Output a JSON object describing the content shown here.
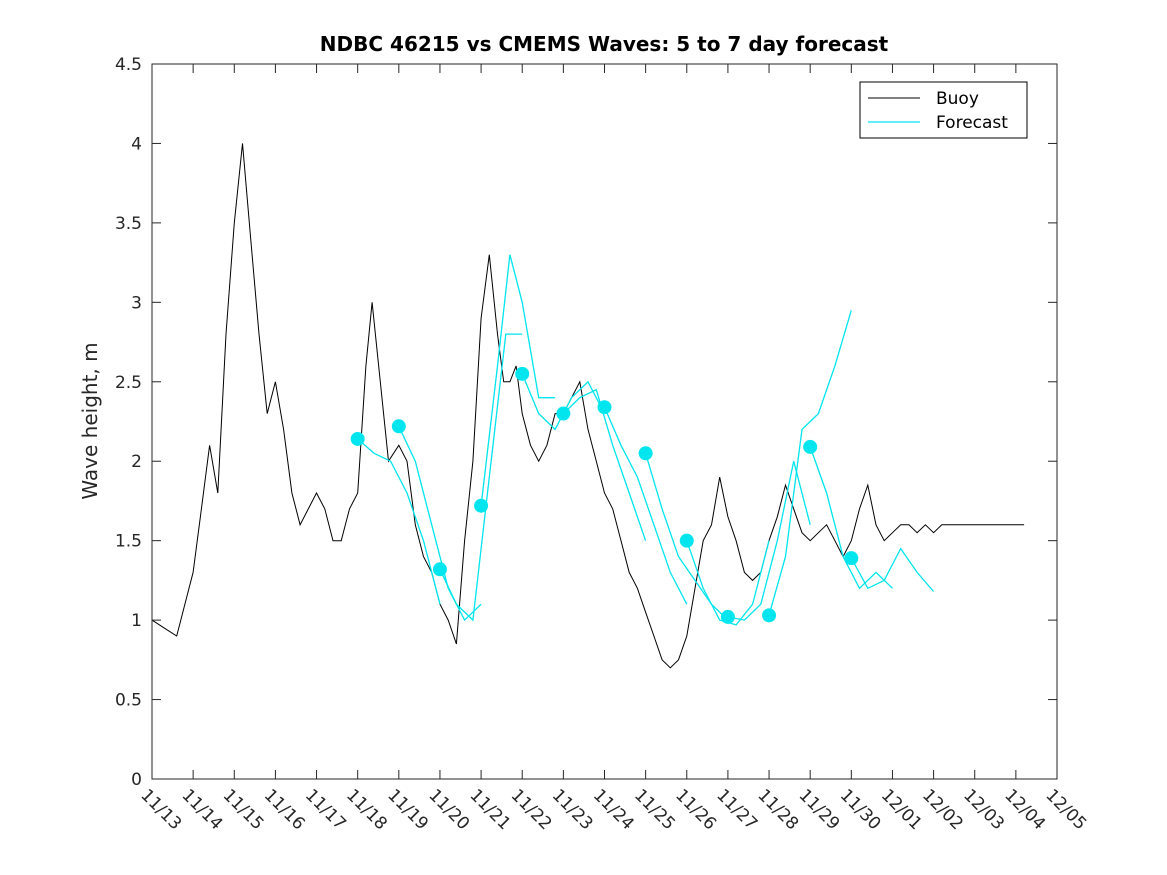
{
  "chart_data": {
    "type": "line",
    "title": "NDBC 46215 vs CMEMS Waves: 5 to 7 day forecast",
    "xlabel": "",
    "ylabel": "Wave height, m",
    "x_unit": "date (Nov 13 - Dec 05)",
    "xlim": [
      "11/13",
      "12/05"
    ],
    "ylim": [
      0,
      4.5
    ],
    "x_ticks": [
      "11/13",
      "11/14",
      "11/15",
      "11/16",
      "11/17",
      "11/18",
      "11/19",
      "11/20",
      "11/21",
      "11/22",
      "11/23",
      "11/24",
      "11/25",
      "11/26",
      "11/27",
      "11/28",
      "11/29",
      "11/30",
      "12/01",
      "12/02",
      "12/03",
      "12/04",
      "12/05"
    ],
    "y_ticks": [
      "0",
      "0.5",
      "1",
      "1.5",
      "2",
      "2.5",
      "3",
      "3.5",
      "4",
      "4.5"
    ],
    "grid": false,
    "legend": {
      "position": "top-right",
      "entries": [
        "Buoy",
        "Forecast"
      ]
    },
    "colors": {
      "buoy": "#000000",
      "forecast": "#00e5ee"
    },
    "series": [
      {
        "name": "Buoy",
        "x_days_from_11_13": [
          0,
          0.3,
          0.6,
          0.9,
          1.0,
          1.2,
          1.4,
          1.6,
          1.8,
          2.0,
          2.2,
          2.4,
          2.6,
          2.8,
          3.0,
          3.2,
          3.4,
          3.6,
          3.8,
          4.0,
          4.2,
          4.4,
          4.6,
          4.8,
          5.0,
          5.2,
          5.35,
          5.55,
          5.75,
          6.0,
          6.2,
          6.4,
          6.6,
          6.8,
          7.0,
          7.2,
          7.4,
          7.6,
          7.8,
          8.0,
          8.2,
          8.4,
          8.55,
          8.7,
          8.85,
          9.0,
          9.2,
          9.4,
          9.6,
          9.8,
          10.0,
          10.2,
          10.4,
          10.6,
          10.8,
          11.0,
          11.2,
          11.4,
          11.6,
          11.8,
          12.0,
          12.2,
          12.4,
          12.6,
          12.8,
          13.0,
          13.2,
          13.4,
          13.6,
          13.8,
          14.0,
          14.2,
          14.4,
          14.6,
          14.8,
          15.0,
          15.2,
          15.4,
          15.6,
          15.8,
          16.0,
          16.2,
          16.4,
          16.6,
          16.8,
          17.0,
          17.2,
          17.4,
          17.6,
          17.8,
          18.0,
          18.2,
          18.4,
          18.6,
          18.8,
          19.0,
          19.2,
          19.4,
          19.6,
          19.8,
          20.0,
          20.2,
          20.4,
          20.6,
          20.8,
          21.0,
          21.2,
          21.4
        ],
        "values": [
          1.0,
          0.95,
          0.9,
          1.2,
          1.3,
          1.7,
          2.1,
          1.8,
          2.8,
          3.5,
          4.0,
          3.4,
          2.8,
          2.3,
          2.5,
          2.2,
          1.8,
          1.6,
          1.7,
          1.8,
          1.7,
          1.5,
          1.5,
          1.7,
          1.8,
          2.6,
          3.0,
          2.5,
          2.0,
          2.1,
          2.0,
          1.6,
          1.4,
          1.3,
          1.1,
          1.0,
          0.85,
          1.5,
          2.0,
          2.9,
          3.3,
          2.8,
          2.5,
          2.5,
          2.6,
          2.3,
          2.1,
          2.0,
          2.1,
          2.3,
          2.3,
          2.4,
          2.5,
          2.2,
          2.0,
          1.8,
          1.7,
          1.5,
          1.3,
          1.2,
          1.05,
          0.9,
          0.75,
          0.7,
          0.75,
          0.9,
          1.2,
          1.5,
          1.6,
          1.9,
          1.65,
          1.5,
          1.3,
          1.25,
          1.3,
          1.5,
          1.65,
          1.85,
          1.7,
          1.55,
          1.5,
          1.55,
          1.6,
          1.5,
          1.4,
          1.5,
          1.7,
          1.85,
          1.6,
          1.5,
          1.55,
          1.6,
          1.6,
          1.55,
          1.6,
          1.55,
          1.6,
          1.6,
          1.6,
          1.6,
          1.6,
          1.6,
          1.6,
          1.6,
          1.6,
          1.6,
          1.6
        ]
      },
      {
        "name": "Forecast",
        "note": "overlapping forecast runs; dots mark forecast start values",
        "runs": [
          {
            "x": [
              5.0,
              5.4,
              5.8,
              6.2,
              6.6,
              7.0
            ],
            "values": [
              2.14,
              2.05,
              2.0,
              1.8,
              1.5,
              1.1
            ]
          },
          {
            "x": [
              6.0,
              6.4,
              6.8,
              7.2,
              7.6,
              8.0
            ],
            "values": [
              2.22,
              2.0,
              1.6,
              1.2,
              1.0,
              1.1
            ]
          },
          {
            "x": [
              7.0,
              7.4,
              7.8,
              8.2,
              8.6,
              9.0
            ],
            "values": [
              1.32,
              1.1,
              1.0,
              1.9,
              2.8,
              2.8
            ]
          },
          {
            "x": [
              8.0,
              8.4,
              8.7,
              9.0,
              9.4,
              9.8
            ],
            "values": [
              1.72,
              2.6,
              3.3,
              3.0,
              2.4,
              2.4
            ]
          },
          {
            "x": [
              9.0,
              9.4,
              9.8,
              10.2,
              10.6,
              11.0
            ],
            "values": [
              2.55,
              2.3,
              2.2,
              2.4,
              2.5,
              2.3
            ]
          },
          {
            "x": [
              10.0,
              10.4,
              10.8,
              11.2,
              11.6,
              12.0
            ],
            "values": [
              2.3,
              2.4,
              2.45,
              2.1,
              1.8,
              1.5
            ]
          },
          {
            "x": [
              11.0,
              11.4,
              11.8,
              12.2,
              12.6,
              13.0
            ],
            "values": [
              2.34,
              2.1,
              1.9,
              1.6,
              1.3,
              1.1
            ]
          },
          {
            "x": [
              12.0,
              12.4,
              12.8,
              13.2,
              13.6,
              14.0
            ],
            "values": [
              2.05,
              1.7,
              1.4,
              1.25,
              1.1,
              1.0
            ]
          },
          {
            "x": [
              13.0,
              13.4,
              13.8,
              14.2,
              14.6,
              15.0
            ],
            "values": [
              1.5,
              1.2,
              1.0,
              0.97,
              1.1,
              1.5
            ]
          },
          {
            "x": [
              14.0,
              14.4,
              14.8,
              15.2,
              15.6,
              16.0
            ],
            "values": [
              1.02,
              1.0,
              1.1,
              1.5,
              2.0,
              1.6
            ]
          },
          {
            "x": [
              15.0,
              15.4,
              15.8,
              16.2,
              16.6,
              17.0
            ],
            "values": [
              1.03,
              1.4,
              2.2,
              2.3,
              2.6,
              2.95
            ]
          },
          {
            "x": [
              16.0,
              16.4,
              16.8,
              17.2,
              17.6,
              18.0
            ],
            "values": [
              2.09,
              1.8,
              1.4,
              1.2,
              1.3,
              1.2
            ]
          },
          {
            "x": [
              17.0,
              17.4,
              17.8,
              18.2,
              18.6,
              19.0
            ],
            "values": [
              1.39,
              1.2,
              1.25,
              1.45,
              1.3,
              1.18
            ]
          }
        ],
        "start_points_x": [
          5.0,
          6.0,
          7.0,
          8.0,
          9.0,
          10.0,
          11.0,
          12.0,
          13.0,
          14.0,
          15.0,
          16.0,
          17.0
        ],
        "start_points_y": [
          2.14,
          2.22,
          1.32,
          1.72,
          2.55,
          2.3,
          2.34,
          2.05,
          1.5,
          1.02,
          1.03,
          2.09,
          1.39
        ]
      }
    ]
  }
}
